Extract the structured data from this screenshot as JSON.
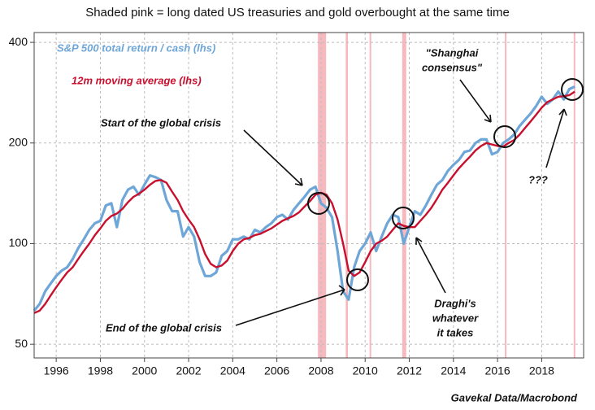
{
  "chart_data": {
    "type": "line",
    "title": "Shaded pink = long dated US treasuries and gold overbought at the same time",
    "source": "Gavekal Data/Macrobond",
    "log_scale": true,
    "grid": true,
    "xlim": [
      1995,
      2019.9
    ],
    "ylim": [
      45.5,
      428
    ],
    "xticks": [
      1996,
      1998,
      2000,
      2002,
      2004,
      2006,
      2008,
      2010,
      2012,
      2014,
      2016,
      2018
    ],
    "yticks": [
      50,
      100,
      200,
      400
    ],
    "shade_color": "#f4a0a8",
    "shaded": [
      [
        2007.86,
        2008.23
      ],
      [
        2009.12,
        2009.22
      ],
      [
        2010.2,
        2010.25
      ],
      [
        2011.68,
        2011.86
      ],
      [
        2016.33,
        2016.4
      ],
      [
        2019.45,
        2019.5
      ]
    ],
    "x": [
      1995,
      1995.25,
      1995.5,
      1995.75,
      1996,
      1996.25,
      1996.5,
      1996.75,
      1997,
      1997.25,
      1997.5,
      1997.75,
      1998,
      1998.25,
      1998.5,
      1998.75,
      1999,
      1999.25,
      1999.5,
      1999.75,
      2000,
      2000.25,
      2000.5,
      2000.75,
      2001,
      2001.25,
      2001.5,
      2001.75,
      2002,
      2002.25,
      2002.5,
      2002.75,
      2003,
      2003.25,
      2003.5,
      2003.75,
      2004,
      2004.25,
      2004.5,
      2004.75,
      2005,
      2005.25,
      2005.5,
      2005.75,
      2006,
      2006.25,
      2006.5,
      2006.75,
      2007,
      2007.25,
      2007.5,
      2007.75,
      2008,
      2008.25,
      2008.5,
      2008.75,
      2009,
      2009.25,
      2009.5,
      2009.75,
      2010,
      2010.25,
      2010.5,
      2010.75,
      2011,
      2011.25,
      2011.5,
      2011.75,
      2012,
      2012.25,
      2012.5,
      2012.75,
      2013,
      2013.25,
      2013.5,
      2013.75,
      2014,
      2014.25,
      2014.5,
      2014.75,
      2015,
      2015.25,
      2015.5,
      2015.75,
      2016,
      2016.25,
      2016.5,
      2016.75,
      2017,
      2017.25,
      2017.5,
      2017.75,
      2018,
      2018.25,
      2018.5,
      2018.75,
      2019,
      2019.25,
      2019.5
    ],
    "series": [
      {
        "name": "S&P 500 total return / cash (lhs)",
        "color": "#6fa6d8",
        "width": 3.2,
        "values": [
          63,
          66,
          72,
          76,
          80,
          83,
          85,
          90,
          97,
          103,
          110,
          115,
          117,
          130,
          132,
          112,
          135,
          145,
          148,
          140,
          150,
          160,
          158,
          155,
          135,
          125,
          125,
          105,
          112,
          105,
          88,
          80,
          80,
          82,
          92,
          95,
          103,
          103,
          105,
          103,
          110,
          108,
          112,
          115,
          120,
          122,
          118,
          126,
          132,
          138,
          145,
          148,
          132,
          128,
          120,
          95,
          72,
          68,
          85,
          95,
          100,
          108,
          95,
          105,
          115,
          122,
          120,
          100,
          112,
          125,
          122,
          130,
          140,
          150,
          155,
          165,
          172,
          178,
          188,
          190,
          200,
          205,
          205,
          185,
          188,
          200,
          205,
          212,
          225,
          235,
          245,
          258,
          275,
          262,
          270,
          285,
          270,
          290,
          295
        ]
      },
      {
        "name": "12m moving average (lhs)",
        "color": "#c8102e",
        "width": 2.4,
        "values": [
          62,
          63,
          66,
          70,
          74,
          78,
          82,
          85,
          90,
          95,
          100,
          106,
          111,
          117,
          121,
          123,
          127,
          133,
          138,
          141,
          145,
          150,
          154,
          155,
          152,
          143,
          135,
          125,
          118,
          112,
          103,
          93,
          87,
          85,
          86,
          89,
          95,
          100,
          103,
          104,
          106,
          107,
          109,
          111,
          114,
          117,
          119,
          121,
          124,
          129,
          134,
          140,
          142,
          140,
          132,
          118,
          100,
          83,
          80,
          82,
          88,
          95,
          100,
          102,
          105,
          110,
          115,
          113,
          112,
          112,
          117,
          122,
          128,
          136,
          145,
          152,
          160,
          168,
          175,
          182,
          190,
          196,
          200,
          198,
          196,
          195,
          200,
          204,
          212,
          222,
          232,
          243,
          255,
          265,
          270,
          275,
          276,
          278,
          285
        ]
      }
    ],
    "annotations": [
      {
        "lines": [
          "Start of the global crisis"
        ]
      },
      {
        "lines": [
          "End of the global crisis"
        ]
      },
      {
        "lines": [
          "\"Shanghai",
          "consensus\""
        ]
      },
      {
        "lines": [
          "Draghi's",
          "whatever",
          "it takes"
        ]
      },
      {
        "lines": [
          "???"
        ]
      }
    ]
  }
}
